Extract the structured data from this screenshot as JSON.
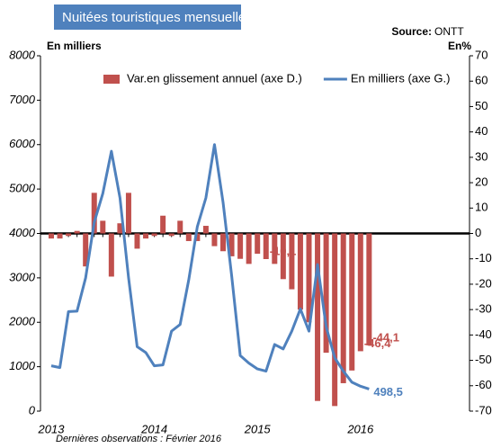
{
  "chart_data": {
    "type": "combo",
    "title": "Nuitées touristiques mensuelles",
    "source_label": "Source:",
    "source": "ONTT",
    "y_label": "En milliers",
    "y2_label": "En%",
    "footnote": "Dernières observations :  Février 2016",
    "categories": [
      "2013",
      null,
      null,
      null,
      null,
      null,
      null,
      null,
      null,
      null,
      null,
      null,
      "2014",
      null,
      null,
      null,
      null,
      null,
      null,
      null,
      null,
      null,
      null,
      null,
      "2015",
      null,
      null,
      null,
      null,
      null,
      null,
      null,
      null,
      null,
      null,
      null,
      "2016",
      null
    ],
    "ylim": [
      0,
      8000
    ],
    "yticks": [
      0,
      1000,
      2000,
      3000,
      4000,
      5000,
      6000,
      7000,
      8000
    ],
    "y2lim": [
      -70,
      70
    ],
    "y2ticks": [
      -70,
      -60,
      -50,
      -40,
      -30,
      -20,
      -10,
      0,
      10,
      20,
      30,
      40,
      50,
      60,
      70
    ],
    "grid": false,
    "legend": "top",
    "series": [
      {
        "name": "Var.en glissement annuel (axe D.)",
        "type": "bar",
        "axis": "y2",
        "color": "#c0504d",
        "values": [
          -2,
          -2,
          -1,
          1,
          -13,
          16,
          5,
          -17,
          4,
          16,
          -6,
          -2,
          -1,
          7,
          -1,
          5,
          -3,
          -3,
          3,
          -5,
          -7,
          -9,
          -10,
          -12,
          -8,
          -10.1,
          -12,
          -18,
          -22,
          -30,
          -35,
          -66,
          -47,
          -68,
          -59,
          -54,
          -46.4,
          -44.1
        ],
        "value_labels": [
          null,
          null,
          null,
          null,
          null,
          null,
          null,
          null,
          null,
          null,
          null,
          null,
          null,
          null,
          null,
          null,
          null,
          null,
          null,
          null,
          null,
          null,
          null,
          null,
          null,
          "-10,1",
          null,
          null,
          null,
          null,
          null,
          null,
          null,
          null,
          null,
          null,
          "-46,4",
          "-44,1"
        ]
      },
      {
        "name": "En milliers (axe G.)",
        "type": "line",
        "color": "#4f81bd",
        "values": [
          1020,
          980,
          2240,
          2250,
          3000,
          4250,
          4900,
          5850,
          4800,
          3000,
          1450,
          1320,
          1020,
          1040,
          1800,
          1950,
          2950,
          4150,
          4800,
          6000,
          4700,
          3050,
          1250,
          1080,
          950,
          900,
          1500,
          1400,
          1800,
          2300,
          1800,
          3300,
          1900,
          1200,
          900,
          650,
          560,
          498.5
        ],
        "value_labels": [
          null,
          null,
          null,
          null,
          null,
          null,
          null,
          null,
          null,
          null,
          null,
          null,
          null,
          null,
          null,
          null,
          null,
          null,
          null,
          null,
          null,
          null,
          null,
          null,
          null,
          null,
          null,
          null,
          null,
          null,
          null,
          null,
          null,
          null,
          null,
          null,
          null,
          "498,5"
        ]
      }
    ]
  }
}
